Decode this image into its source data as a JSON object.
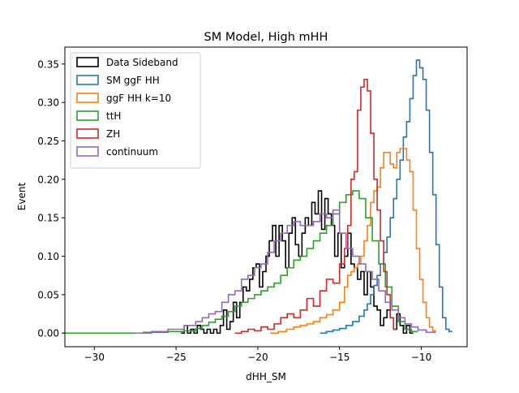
{
  "chart_data": {
    "type": "line",
    "drawstyle": "steps-mid",
    "title": "SM Model, High mHH",
    "xlabel": "dHH_SM",
    "ylabel": "Event",
    "xlim": [
      -31.8,
      -7.2
    ],
    "ylim": [
      -0.0177,
      0.372
    ],
    "xticks": [
      -30,
      -25,
      -20,
      -15,
      -10
    ],
    "xtick_labels": [
      "−30",
      "−25",
      "−20",
      "−15",
      "−10"
    ],
    "yticks": [
      0.0,
      0.05,
      0.1,
      0.15,
      0.2,
      0.25,
      0.3,
      0.35
    ],
    "ytick_labels": [
      "0.00",
      "0.05",
      "0.10",
      "0.15",
      "0.20",
      "0.25",
      "0.30",
      "0.35"
    ],
    "grid": false,
    "legend_position": "top-left",
    "series": [
      {
        "name": "Data Sideband",
        "color": "#000000",
        "points": [
          [
            -24.6,
            0.0
          ],
          [
            -24.4,
            0.01
          ],
          [
            -24.2,
            0.0
          ],
          [
            -24.0,
            0.005
          ],
          [
            -23.8,
            0.0
          ],
          [
            -23.6,
            0.01
          ],
          [
            -23.4,
            0.005
          ],
          [
            -23.2,
            0.0
          ],
          [
            -23.0,
            0.005
          ],
          [
            -22.8,
            0.0
          ],
          [
            -22.6,
            0.005
          ],
          [
            -22.4,
            0.0
          ],
          [
            -22.2,
            0.01
          ],
          [
            -22.0,
            0.03
          ],
          [
            -21.8,
            0.005
          ],
          [
            -21.6,
            0.015
          ],
          [
            -21.4,
            0.04
          ],
          [
            -21.2,
            0.02
          ],
          [
            -21.0,
            0.04
          ],
          [
            -20.8,
            0.06
          ],
          [
            -20.6,
            0.055
          ],
          [
            -20.4,
            0.07
          ],
          [
            -20.2,
            0.085
          ],
          [
            -20.0,
            0.09
          ],
          [
            -19.8,
            0.06
          ],
          [
            -19.6,
            0.08
          ],
          [
            -19.4,
            0.1
          ],
          [
            -19.2,
            0.12
          ],
          [
            -19.0,
            0.14
          ],
          [
            -18.8,
            0.1
          ],
          [
            -18.6,
            0.14
          ],
          [
            -18.4,
            0.12
          ],
          [
            -18.2,
            0.085
          ],
          [
            -18.0,
            0.13
          ],
          [
            -17.8,
            0.15
          ],
          [
            -17.6,
            0.115
          ],
          [
            -17.4,
            0.1
          ],
          [
            -17.2,
            0.13
          ],
          [
            -17.0,
            0.15
          ],
          [
            -16.8,
            0.14
          ],
          [
            -16.6,
            0.17
          ],
          [
            -16.4,
            0.155
          ],
          [
            -16.2,
            0.185
          ],
          [
            -16.0,
            0.135
          ],
          [
            -15.8,
            0.175
          ],
          [
            -15.6,
            0.155
          ],
          [
            -15.4,
            0.14
          ],
          [
            -15.2,
            0.1
          ],
          [
            -15.0,
            0.13
          ],
          [
            -14.8,
            0.085
          ],
          [
            -14.6,
            0.1
          ],
          [
            -14.4,
            0.13
          ],
          [
            -14.2,
            0.09
          ],
          [
            -14.0,
            0.085
          ],
          [
            -13.8,
            0.07
          ],
          [
            -13.6,
            0.08
          ],
          [
            -13.4,
            0.05
          ],
          [
            -13.2,
            0.08
          ],
          [
            -13.0,
            0.06
          ],
          [
            -12.8,
            0.035
          ],
          [
            -12.6,
            0.03
          ],
          [
            -12.4,
            0.01
          ],
          [
            -12.2,
            0.02
          ],
          [
            -12.0,
            0.03
          ],
          [
            -11.8,
            0.02
          ],
          [
            -11.6,
            0.005
          ],
          [
            -11.4,
            0.025
          ],
          [
            -11.2,
            0.01
          ],
          [
            -11.0,
            0.0
          ],
          [
            -10.8,
            0.01
          ],
          [
            -10.6,
            0.0
          ]
        ]
      },
      {
        "name": "SM ggF HH",
        "color": "#1f77b4",
        "points": [
          [
            -16.0,
            0.0
          ],
          [
            -15.6,
            0.002
          ],
          [
            -15.2,
            0.004
          ],
          [
            -14.8,
            0.006
          ],
          [
            -14.4,
            0.01
          ],
          [
            -14.0,
            0.015
          ],
          [
            -13.6,
            0.022
          ],
          [
            -13.4,
            0.03
          ],
          [
            -13.2,
            0.038
          ],
          [
            -13.0,
            0.05
          ],
          [
            -12.8,
            0.062
          ],
          [
            -12.6,
            0.075
          ],
          [
            -12.4,
            0.09
          ],
          [
            -12.2,
            0.105
          ],
          [
            -12.0,
            0.125
          ],
          [
            -11.8,
            0.15
          ],
          [
            -11.6,
            0.175
          ],
          [
            -11.4,
            0.2
          ],
          [
            -11.2,
            0.225
          ],
          [
            -11.0,
            0.255
          ],
          [
            -10.8,
            0.275
          ],
          [
            -10.6,
            0.305
          ],
          [
            -10.4,
            0.335
          ],
          [
            -10.2,
            0.355
          ],
          [
            -10.0,
            0.345
          ],
          [
            -9.8,
            0.33
          ],
          [
            -9.6,
            0.29
          ],
          [
            -9.4,
            0.235
          ],
          [
            -9.2,
            0.18
          ],
          [
            -9.0,
            0.115
          ],
          [
            -8.8,
            0.06
          ],
          [
            -8.6,
            0.02
          ],
          [
            -8.4,
            0.005
          ],
          [
            -8.2,
            0.002
          ]
        ]
      },
      {
        "name": "ggF HH k=10",
        "color": "#ff7f0e",
        "points": [
          [
            -19.0,
            0.0
          ],
          [
            -18.5,
            0.002
          ],
          [
            -18.0,
            0.005
          ],
          [
            -17.6,
            0.008
          ],
          [
            -17.2,
            0.01
          ],
          [
            -16.8,
            0.012
          ],
          [
            -16.4,
            0.015
          ],
          [
            -16.0,
            0.02
          ],
          [
            -15.6,
            0.024
          ],
          [
            -15.2,
            0.03
          ],
          [
            -14.8,
            0.04
          ],
          [
            -14.6,
            0.06
          ],
          [
            -14.4,
            0.075
          ],
          [
            -14.2,
            0.08
          ],
          [
            -14.0,
            0.085
          ],
          [
            -13.8,
            0.09
          ],
          [
            -13.6,
            0.1
          ],
          [
            -13.4,
            0.12
          ],
          [
            -13.2,
            0.14
          ],
          [
            -13.0,
            0.17
          ],
          [
            -12.8,
            0.185
          ],
          [
            -12.6,
            0.19
          ],
          [
            -12.4,
            0.215
          ],
          [
            -12.2,
            0.235
          ],
          [
            -12.0,
            0.235
          ],
          [
            -11.8,
            0.22
          ],
          [
            -11.6,
            0.215
          ],
          [
            -11.4,
            0.235
          ],
          [
            -11.2,
            0.24
          ],
          [
            -11.0,
            0.24
          ],
          [
            -10.8,
            0.225
          ],
          [
            -10.6,
            0.21
          ],
          [
            -10.4,
            0.16
          ],
          [
            -10.2,
            0.11
          ],
          [
            -10.0,
            0.07
          ],
          [
            -9.8,
            0.04
          ],
          [
            -9.6,
            0.02
          ],
          [
            -9.4,
            0.008
          ],
          [
            -9.2,
            0.003
          ]
        ]
      },
      {
        "name": "ttH",
        "color": "#2ca02c",
        "points": [
          [
            -30.6,
            0.0
          ],
          [
            -28.0,
            0.0
          ],
          [
            -26.0,
            0.001
          ],
          [
            -25.0,
            0.002
          ],
          [
            -24.0,
            0.003
          ],
          [
            -23.6,
            0.006
          ],
          [
            -23.2,
            0.01
          ],
          [
            -22.8,
            0.014
          ],
          [
            -22.4,
            0.018
          ],
          [
            -22.0,
            0.022
          ],
          [
            -21.6,
            0.028
          ],
          [
            -21.2,
            0.035
          ],
          [
            -20.8,
            0.04
          ],
          [
            -20.4,
            0.045
          ],
          [
            -20.0,
            0.05
          ],
          [
            -19.6,
            0.055
          ],
          [
            -19.2,
            0.06
          ],
          [
            -18.8,
            0.065
          ],
          [
            -18.4,
            0.075
          ],
          [
            -18.0,
            0.085
          ],
          [
            -17.6,
            0.095
          ],
          [
            -17.2,
            0.1
          ],
          [
            -16.8,
            0.11
          ],
          [
            -16.4,
            0.12
          ],
          [
            -16.0,
            0.13
          ],
          [
            -15.6,
            0.14
          ],
          [
            -15.2,
            0.155
          ],
          [
            -14.8,
            0.17
          ],
          [
            -14.4,
            0.18
          ],
          [
            -14.0,
            0.185
          ],
          [
            -13.6,
            0.175
          ],
          [
            -13.2,
            0.15
          ],
          [
            -12.8,
            0.12
          ],
          [
            -12.4,
            0.09
          ],
          [
            -12.0,
            0.06
          ],
          [
            -11.6,
            0.035
          ],
          [
            -11.2,
            0.015
          ],
          [
            -10.8,
            0.005
          ],
          [
            -10.4,
            0.002
          ]
        ]
      },
      {
        "name": "ZH",
        "color": "#d62728",
        "points": [
          [
            -21.2,
            0.0
          ],
          [
            -20.8,
            0.002
          ],
          [
            -20.4,
            0.005
          ],
          [
            -20.0,
            0.003
          ],
          [
            -19.6,
            0.008
          ],
          [
            -19.2,
            0.005
          ],
          [
            -18.8,
            0.012
          ],
          [
            -18.4,
            0.02
          ],
          [
            -18.0,
            0.025
          ],
          [
            -17.6,
            0.02
          ],
          [
            -17.2,
            0.03
          ],
          [
            -16.8,
            0.045
          ],
          [
            -16.4,
            0.035
          ],
          [
            -16.0,
            0.055
          ],
          [
            -15.6,
            0.07
          ],
          [
            -15.2,
            0.065
          ],
          [
            -14.8,
            0.09
          ],
          [
            -14.6,
            0.11
          ],
          [
            -14.4,
            0.14
          ],
          [
            -14.2,
            0.2
          ],
          [
            -14.0,
            0.21
          ],
          [
            -13.8,
            0.29
          ],
          [
            -13.6,
            0.32
          ],
          [
            -13.4,
            0.33
          ],
          [
            -13.2,
            0.315
          ],
          [
            -13.0,
            0.26
          ],
          [
            -12.8,
            0.2
          ],
          [
            -12.6,
            0.16
          ],
          [
            -12.4,
            0.12
          ],
          [
            -12.2,
            0.08
          ],
          [
            -12.0,
            0.05
          ],
          [
            -11.8,
            0.02
          ],
          [
            -11.6,
            0.005
          ]
        ]
      },
      {
        "name": "continuum",
        "color": "#9467bd",
        "points": [
          [
            -27.0,
            0.0
          ],
          [
            -26.0,
            0.002
          ],
          [
            -25.0,
            0.005
          ],
          [
            -24.0,
            0.01
          ],
          [
            -23.6,
            0.015
          ],
          [
            -23.2,
            0.02
          ],
          [
            -22.8,
            0.025
          ],
          [
            -22.4,
            0.028
          ],
          [
            -22.0,
            0.04
          ],
          [
            -21.6,
            0.05
          ],
          [
            -21.2,
            0.055
          ],
          [
            -20.8,
            0.07
          ],
          [
            -20.4,
            0.075
          ],
          [
            -20.0,
            0.085
          ],
          [
            -19.6,
            0.09
          ],
          [
            -19.2,
            0.105
          ],
          [
            -18.8,
            0.12
          ],
          [
            -18.4,
            0.13
          ],
          [
            -18.0,
            0.14
          ],
          [
            -17.6,
            0.145
          ],
          [
            -17.2,
            0.14
          ],
          [
            -16.8,
            0.14
          ],
          [
            -16.4,
            0.145
          ],
          [
            -16.0,
            0.155
          ],
          [
            -15.6,
            0.15
          ],
          [
            -15.2,
            0.16
          ],
          [
            -14.8,
            0.13
          ],
          [
            -14.4,
            0.11
          ],
          [
            -14.0,
            0.1
          ],
          [
            -13.6,
            0.09
          ],
          [
            -13.2,
            0.08
          ],
          [
            -12.8,
            0.07
          ],
          [
            -12.4,
            0.055
          ],
          [
            -12.0,
            0.04
          ],
          [
            -11.6,
            0.03
          ],
          [
            -11.2,
            0.02
          ],
          [
            -10.8,
            0.012
          ],
          [
            -10.4,
            0.008
          ],
          [
            -10.0,
            0.004
          ],
          [
            -9.4,
            0.001
          ]
        ]
      }
    ]
  }
}
